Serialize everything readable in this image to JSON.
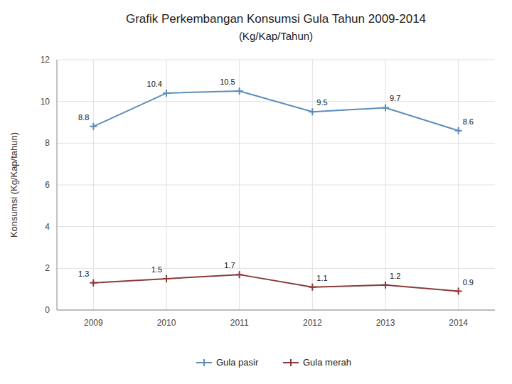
{
  "chart_data": {
    "type": "line",
    "title": "Grafik Perkembangan Konsumsi Gula Tahun 2009-2014",
    "subtitle": "(Kg/Kap/Tahun)",
    "ylabel": "Konsumsi (Kg/Kap/tahun)",
    "x": [
      2009,
      2010,
      2011,
      2012,
      2013,
      2014
    ],
    "xlim": [
      2008.5,
      2014.5
    ],
    "xticks": [
      2009,
      2010,
      2011,
      2012,
      2013,
      2014
    ],
    "ylim": [
      0,
      12
    ],
    "yticks": [
      0,
      2,
      4,
      6,
      8,
      10,
      12
    ],
    "series": [
      {
        "name": "Gula pasir",
        "color": "#5B8DB8",
        "marker": "plus",
        "values": [
          8.8,
          10.4,
          10.5,
          9.5,
          9.7,
          8.6
        ]
      },
      {
        "name": "Gula merah",
        "color": "#8B3A3A",
        "marker": "plus",
        "values": [
          1.3,
          1.5,
          1.7,
          1.1,
          1.2,
          0.9
        ]
      }
    ],
    "grid": true,
    "legend": "bottom",
    "data_labels": true
  }
}
